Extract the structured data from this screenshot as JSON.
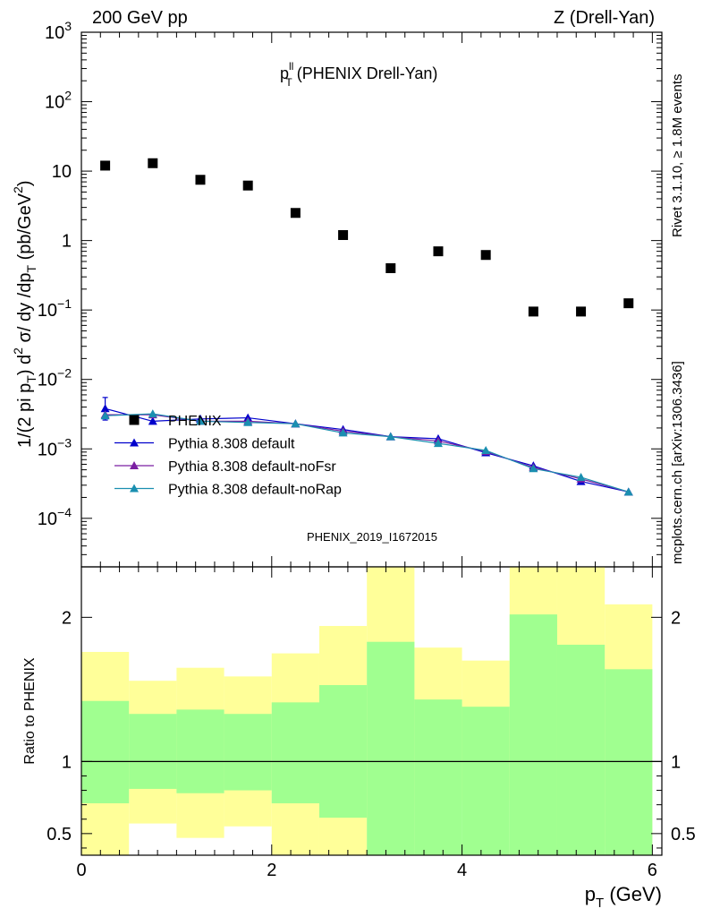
{
  "header": {
    "left": "200 GeV pp",
    "right": "Z (Drell-Yan)"
  },
  "side_labels": {
    "rivet": "Rivet 3.1.10, ≥ 1.8M events",
    "mcplots": "mcplots.cern.ch [arXiv:1306.3436]"
  },
  "chart_data": [
    {
      "type": "scatter",
      "title_main": "p",
      "title_sup": "ll",
      "title_sub": "T",
      "title_rest": " (PHENIX Drell-Yan)",
      "ylabel": "1/(2 pi p_T) d²σ/ dy /dp_T (pb/GeV²)",
      "ylabel_parts": {
        "a": "1/(2 pi p",
        "a_sub": "T",
        "b": ") d",
        "b_sup": "2",
        "c": " σ/ dy /dp",
        "c_sub": "T",
        "d": " (pb/GeV",
        "d_sup": "2",
        "e": ")"
      },
      "watermark": "PHENIX_2019_I1672015",
      "log_y": true,
      "xlim": [
        0,
        6.1
      ],
      "ylim": [
        2e-05,
        1000
      ],
      "y_ticks": [
        {
          "value": 1000,
          "base": "10",
          "exp": "3"
        },
        {
          "value": 100,
          "base": "10",
          "exp": "2"
        },
        {
          "value": 10,
          "base": "10",
          "exp": ""
        },
        {
          "value": 1,
          "base": "1",
          "exp": ""
        },
        {
          "value": 0.1,
          "base": "10",
          "exp": "−1"
        },
        {
          "value": 0.01,
          "base": "10",
          "exp": "−2"
        },
        {
          "value": 0.001,
          "base": "10",
          "exp": "−3"
        },
        {
          "value": 0.0001,
          "base": "10",
          "exp": "−4"
        }
      ],
      "legend_position": "center-left",
      "series": [
        {
          "name": "PHENIX",
          "marker": "square",
          "color": "#000000",
          "x": [
            0.25,
            0.75,
            1.25,
            1.75,
            2.25,
            2.75,
            3.25,
            3.75,
            4.25,
            4.75,
            5.25,
            5.75
          ],
          "y": [
            12,
            13,
            7.5,
            6.2,
            2.5,
            1.2,
            0.4,
            0.7,
            0.62,
            0.095,
            0.095,
            0.125
          ]
        },
        {
          "name": "Pythia 8.308 default",
          "marker": "triangle",
          "color": "#0000cc",
          "x": [
            0.25,
            0.75,
            1.25,
            1.75,
            2.25,
            2.75,
            3.25,
            3.75,
            4.25,
            4.75,
            5.25,
            5.75
          ],
          "y": [
            0.0038,
            0.0025,
            0.0027,
            0.0028,
            0.0023,
            0.0019,
            0.0015,
            0.0014,
            0.00088,
            0.00057,
            0.00034,
            0.00024
          ],
          "err_y": [
            [
              0.0026,
              0.0055
            ]
          ]
        },
        {
          "name": "Pythia 8.308 default-noFsr",
          "marker": "triangle",
          "color": "#7a1fa2",
          "x": [
            0.25,
            0.75,
            1.25,
            1.75,
            2.25,
            2.75,
            3.25,
            3.75,
            4.25,
            4.75,
            5.25,
            5.75
          ],
          "y": [
            0.0031,
            0.0031,
            0.0025,
            0.0025,
            0.0023,
            0.0018,
            0.0015,
            0.0013,
            0.00092,
            0.00054,
            0.00037,
            0.00024
          ]
        },
        {
          "name": "Pythia 8.308 default-noRap",
          "marker": "triangle",
          "color": "#1a8fb0",
          "x": [
            0.25,
            0.75,
            1.25,
            1.75,
            2.25,
            2.75,
            3.25,
            3.75,
            4.25,
            4.75,
            5.25,
            5.75
          ],
          "y": [
            0.003,
            0.0032,
            0.0025,
            0.0024,
            0.0023,
            0.0017,
            0.0015,
            0.0012,
            0.00095,
            0.00052,
            0.00039,
            0.00024
          ]
        }
      ]
    },
    {
      "type": "area",
      "ylabel": "Ratio to PHENIX",
      "xlabel_main": "p",
      "xlabel_sub": "T",
      "xlabel_rest": " (GeV)",
      "xlim": [
        0,
        6.1
      ],
      "ylim": [
        0.35,
        2.35
      ],
      "x_ticks": [
        "0",
        "2",
        "4",
        "6"
      ],
      "y_ticks": [
        "0.5",
        "1",
        "2"
      ],
      "y_tick_values": [
        0.5,
        1,
        2
      ],
      "bin_edges": [
        0,
        0.5,
        1,
        1.5,
        2,
        2.5,
        3,
        3.5,
        4,
        4.5,
        5,
        5.5,
        6
      ],
      "band_1sigma": {
        "color": "#a0ff90",
        "low": [
          0.71,
          0.81,
          0.78,
          0.8,
          0.71,
          0.61,
          0.32,
          0.32,
          0.32,
          0.32,
          0.32,
          0.32
        ],
        "high": [
          1.42,
          1.33,
          1.36,
          1.33,
          1.41,
          1.53,
          1.83,
          1.43,
          1.38,
          2.02,
          1.81,
          1.64
        ]
      },
      "band_2sigma": {
        "color": "#ffff99",
        "low": [
          0.32,
          0.57,
          0.47,
          0.55,
          0.32,
          0.32,
          0.32,
          0.69,
          0.73,
          0.32,
          0.32,
          0.41
        ],
        "high": [
          1.76,
          1.56,
          1.65,
          1.59,
          1.75,
          1.94,
          2.45,
          1.79,
          1.7,
          2.45,
          2.45,
          2.09
        ]
      },
      "reference_line": 1
    }
  ]
}
